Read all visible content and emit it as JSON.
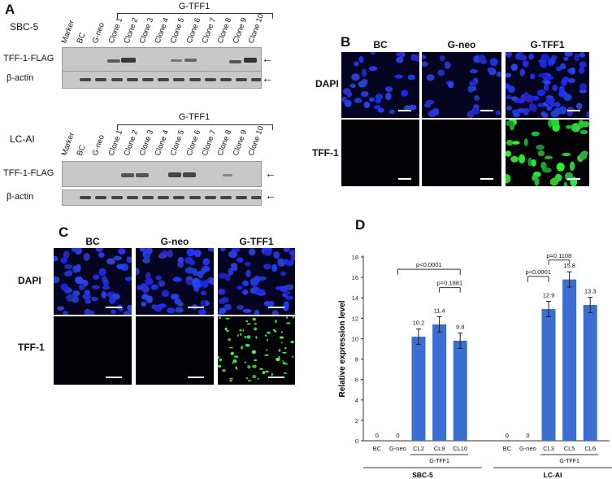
{
  "panelA": {
    "letter": "A",
    "blot1": {
      "cell_line": "SBC-5",
      "group": "G-TFF1",
      "lanes": [
        "Marker",
        "BC",
        "G-neo",
        "Clone 1",
        "Clone 2",
        "Clone 3",
        "Clone 4",
        "Clone 5",
        "Clone 6",
        "Clone 7",
        "Clone 8",
        "Clone 9",
        "Clone 10"
      ],
      "row1_label": "TFF-1-FLAG",
      "row2_label": "β-actin",
      "arrow": "←"
    },
    "blot2": {
      "cell_line": "LC-AI",
      "group": "G-TFF1",
      "lanes": [
        "Marker",
        "BC",
        "G-neo",
        "Clone 1",
        "Clone 2",
        "Clone 3",
        "Clone 4",
        "Clone 5",
        "Clone 6",
        "Clone 7",
        "Clone 8",
        "Clone 9",
        "Clone 10"
      ],
      "row1_label": "TFF-1-FLAG",
      "row2_label": "β-actin",
      "arrow": "←"
    }
  },
  "panelB": {
    "letter": "B",
    "columns": [
      "BC",
      "G-neo",
      "G-TFF1"
    ],
    "rows": [
      "DAPI",
      "TFF-1"
    ]
  },
  "panelC": {
    "letter": "C",
    "columns": [
      "BC",
      "G-neo",
      "G-TFF1"
    ],
    "rows": [
      "DAPI",
      "TFF-1"
    ]
  },
  "panelD": {
    "letter": "D",
    "chart_data": {
      "type": "bar",
      "ylabel": "Relative expression level",
      "ylim": [
        0,
        18
      ],
      "yticks": [
        0,
        2,
        4,
        6,
        8,
        10,
        12,
        14,
        16,
        18
      ],
      "groups": [
        {
          "name": "SBC-5",
          "subgroup": "G-TFF1",
          "categories": [
            "BC",
            "G-neo",
            "CL2",
            "CL9",
            "CL10"
          ],
          "values": [
            0,
            0,
            10.2,
            11.4,
            9.8
          ],
          "value_labels": [
            "0",
            "0",
            "10.2",
            "11.4",
            "9.8"
          ]
        },
        {
          "name": "LC-AI",
          "subgroup": "G-TFF1",
          "categories": [
            "BC",
            "G-neo",
            "CL3",
            "CL5",
            "CL6"
          ],
          "values": [
            0,
            0,
            12.9,
            15.8,
            13.3
          ],
          "value_labels": [
            "0",
            "0",
            "12.9",
            "15.8",
            "13.3"
          ]
        }
      ],
      "significance": [
        {
          "label": "p<0.0001",
          "group": "SBC-5"
        },
        {
          "label": "p=0.1881",
          "group": "SBC-5"
        },
        {
          "label": "p<0.0001",
          "group": "LC-AI"
        },
        {
          "label": "p=0.1108",
          "group": "LC-AI"
        }
      ],
      "bar_color": "#3a6fd1"
    }
  }
}
